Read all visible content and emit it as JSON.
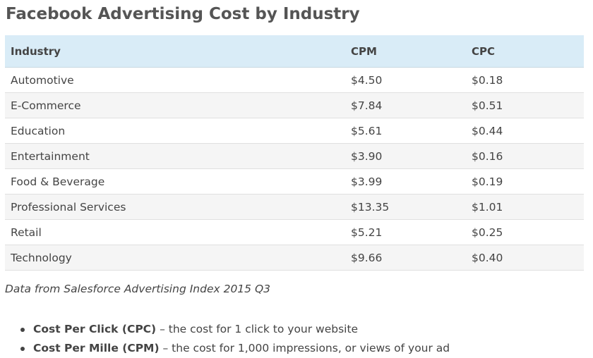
{
  "title": "Facebook Advertising Cost by Industry",
  "table": {
    "headers": [
      "Industry",
      "CPM",
      "CPC"
    ],
    "rows": [
      [
        "Automotive",
        "$4.50",
        "$0.18"
      ],
      [
        "E-Commerce",
        "$7.84",
        "$0.51"
      ],
      [
        "Education",
        "$5.61",
        "$0.44"
      ],
      [
        "Entertainment",
        "$3.90",
        "$0.16"
      ],
      [
        "Food & Beverage",
        "$3.99",
        "$0.19"
      ],
      [
        "Professional Services",
        "$13.35",
        "$1.01"
      ],
      [
        "Retail",
        "$5.21",
        "$0.25"
      ],
      [
        "Technology",
        "$9.66",
        "$0.40"
      ]
    ]
  },
  "source_note": "Data from Salesforce Advertising Index 2015 Q3",
  "definitions": [
    {
      "term": "Cost Per Click (CPC)",
      "text": " – the cost for 1 click to your website"
    },
    {
      "term": "Cost Per Mille (CPM)",
      "text": " – the cost for 1,000 impressions, or views of your ad"
    }
  ],
  "colors": {
    "header_bg": "#d9ecf7",
    "row_alt_bg": "#f5f5f5",
    "text": "#444444",
    "title": "#555555"
  }
}
